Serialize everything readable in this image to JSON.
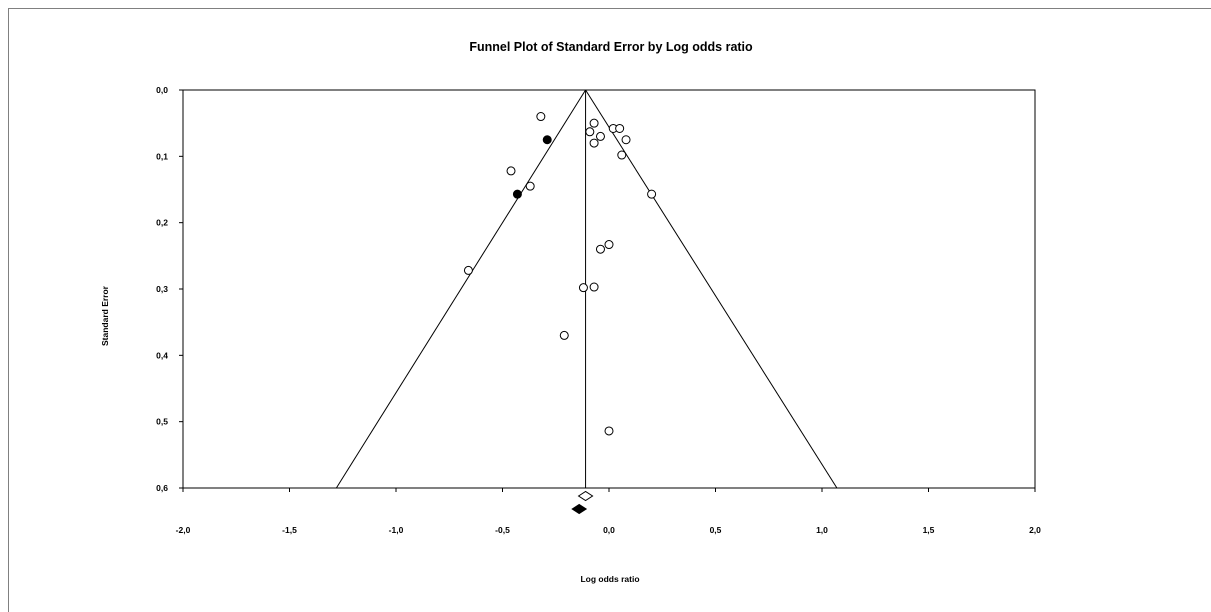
{
  "chart_data": {
    "type": "scatter",
    "title": "Funnel Plot of Standard Error by Log odds ratio",
    "xlabel": "Log odds ratio",
    "ylabel": "Standard Error",
    "xlim": [
      -2.0,
      2.0
    ],
    "ylim": [
      0.0,
      0.6
    ],
    "y_inverted": true,
    "x_ticks": [
      "-2,0",
      "-1,5",
      "-1,0",
      "-0,5",
      "0,0",
      "0,5",
      "1,0",
      "1,5",
      "2,0"
    ],
    "x_tick_values": [
      -2.0,
      -1.5,
      -1.0,
      -0.5,
      0.0,
      0.5,
      1.0,
      1.5,
      2.0
    ],
    "y_ticks": [
      "0,0",
      "0,1",
      "0,2",
      "0,3",
      "0,4",
      "0,5",
      "0,6"
    ],
    "y_tick_values": [
      0.0,
      0.1,
      0.2,
      0.3,
      0.4,
      0.5,
      0.6
    ],
    "funnel": {
      "center": -0.11,
      "apex_se": 0.0,
      "left_at_bottom": -1.28,
      "right_at_bottom": 1.07
    },
    "series": [
      {
        "marker": "open-circle",
        "points": [
          [
            -0.32,
            0.04
          ],
          [
            -0.07,
            0.05
          ],
          [
            0.02,
            0.058
          ],
          [
            0.05,
            0.058
          ],
          [
            -0.09,
            0.063
          ],
          [
            -0.04,
            0.07
          ],
          [
            0.08,
            0.075
          ],
          [
            -0.07,
            0.08
          ],
          [
            0.06,
            0.098
          ],
          [
            -0.46,
            0.122
          ],
          [
            -0.37,
            0.145
          ],
          [
            0.2,
            0.157
          ],
          [
            0.0,
            0.233
          ],
          [
            -0.04,
            0.24
          ],
          [
            -0.66,
            0.272
          ],
          [
            -0.07,
            0.297
          ],
          [
            -0.12,
            0.298
          ],
          [
            -0.21,
            0.37
          ],
          [
            0.0,
            0.514
          ]
        ]
      },
      {
        "marker": "filled-circle",
        "points": [
          [
            -0.29,
            0.075
          ],
          [
            -0.43,
            0.157
          ]
        ]
      }
    ],
    "summary_diamonds": [
      {
        "style": "open",
        "value": -0.11
      },
      {
        "style": "filled",
        "value": -0.14
      }
    ],
    "grid": false,
    "legend": "none"
  }
}
